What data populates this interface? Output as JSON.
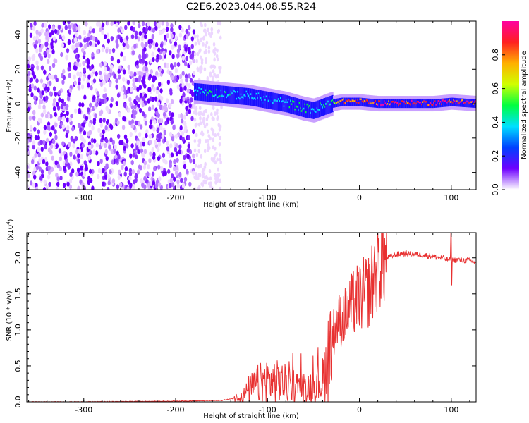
{
  "title": "C2E6.2023.044.08.55.R24",
  "chart_data": [
    {
      "type": "heatmap",
      "xlabel": "Height of straight line (km)",
      "ylabel": "Frequency (Hz)",
      "xlim": [
        -362,
        127
      ],
      "ylim": [
        -50,
        48
      ],
      "xticks": [
        -300,
        -200,
        -100,
        0,
        100
      ],
      "yticks": [
        -40,
        -20,
        0,
        20,
        40
      ],
      "grid": false,
      "colorbar": {
        "label": "Normalized spectral amplitude",
        "range": [
          0,
          1
        ],
        "ticks": [
          "0.0",
          "0.2",
          "0.4",
          "0.6",
          "0.8"
        ],
        "colors": [
          "#ffffff",
          "#6e00ff",
          "#0040ff",
          "#00e0ff",
          "#00ff40",
          "#d0ff00",
          "#ffb000",
          "#ff2020",
          "#ff00a0"
        ]
      },
      "ridge": {
        "x": [
          -180,
          -160,
          -140,
          -120,
          -100,
          -80,
          -60,
          -50,
          -40,
          -30,
          -20,
          -10,
          0,
          20,
          40,
          60,
          80,
          100,
          127
        ],
        "freq": [
          7,
          6,
          5,
          4,
          2,
          0,
          -3,
          -4,
          -2,
          0,
          1,
          1,
          1,
          0,
          0,
          0,
          0,
          1,
          0
        ],
        "peak_amplitude": [
          0.4,
          0.45,
          0.4,
          0.4,
          0.35,
          0.4,
          0.5,
          0.4,
          0.45,
          0.55,
          0.85,
          0.85,
          0.9,
          0.95,
          0.95,
          0.95,
          0.95,
          0.95,
          0.95
        ]
      },
      "noise_region_x": [
        -362,
        -180
      ]
    },
    {
      "type": "line",
      "xlabel": "Height of straight line (km)",
      "ylabel": "SNR (10 * v/v)",
      "y_multiplier_label": "(x10",
      "y_multiplier_exp": "4",
      "y_multiplier_close": ")",
      "xlim": [
        -362,
        127
      ],
      "ylim": [
        0,
        2.35
      ],
      "xticks": [
        -300,
        -200,
        -100,
        0,
        100
      ],
      "yticks": [
        "0.0",
        "0.5",
        "1.0",
        "1.5",
        "2.0"
      ],
      "grid": false,
      "color": "#e83030",
      "series": [
        {
          "x": [
            -362,
            -300,
            -200,
            -150,
            -140,
            -130,
            -125,
            -120,
            -110,
            -100,
            -90,
            -80,
            -70,
            -60,
            -50,
            -45,
            -40,
            -35,
            -30,
            -25,
            -20,
            -15,
            -10,
            -5,
            0,
            5,
            10,
            15,
            20,
            25,
            30,
            40,
            50,
            60,
            70,
            80,
            90,
            95,
            100,
            110,
            120,
            127
          ],
          "y": [
            0.0,
            0.0,
            0.01,
            0.02,
            0.04,
            0.07,
            0.1,
            0.18,
            0.25,
            0.3,
            0.28,
            0.25,
            0.22,
            0.2,
            0.22,
            0.28,
            0.3,
            0.55,
            0.9,
            1.1,
            1.15,
            1.2,
            1.3,
            1.4,
            1.45,
            1.5,
            1.55,
            1.7,
            1.9,
            1.98,
            2.0,
            2.05,
            2.06,
            2.05,
            2.04,
            2.02,
            2.0,
            1.98,
            1.97,
            1.97,
            1.96,
            1.94
          ]
        }
      ],
      "annotations": [
        {
          "x": 100,
          "y": 2.35,
          "note": "spike"
        },
        {
          "x": 100,
          "y": 1.62,
          "note": "dip"
        }
      ]
    }
  ]
}
